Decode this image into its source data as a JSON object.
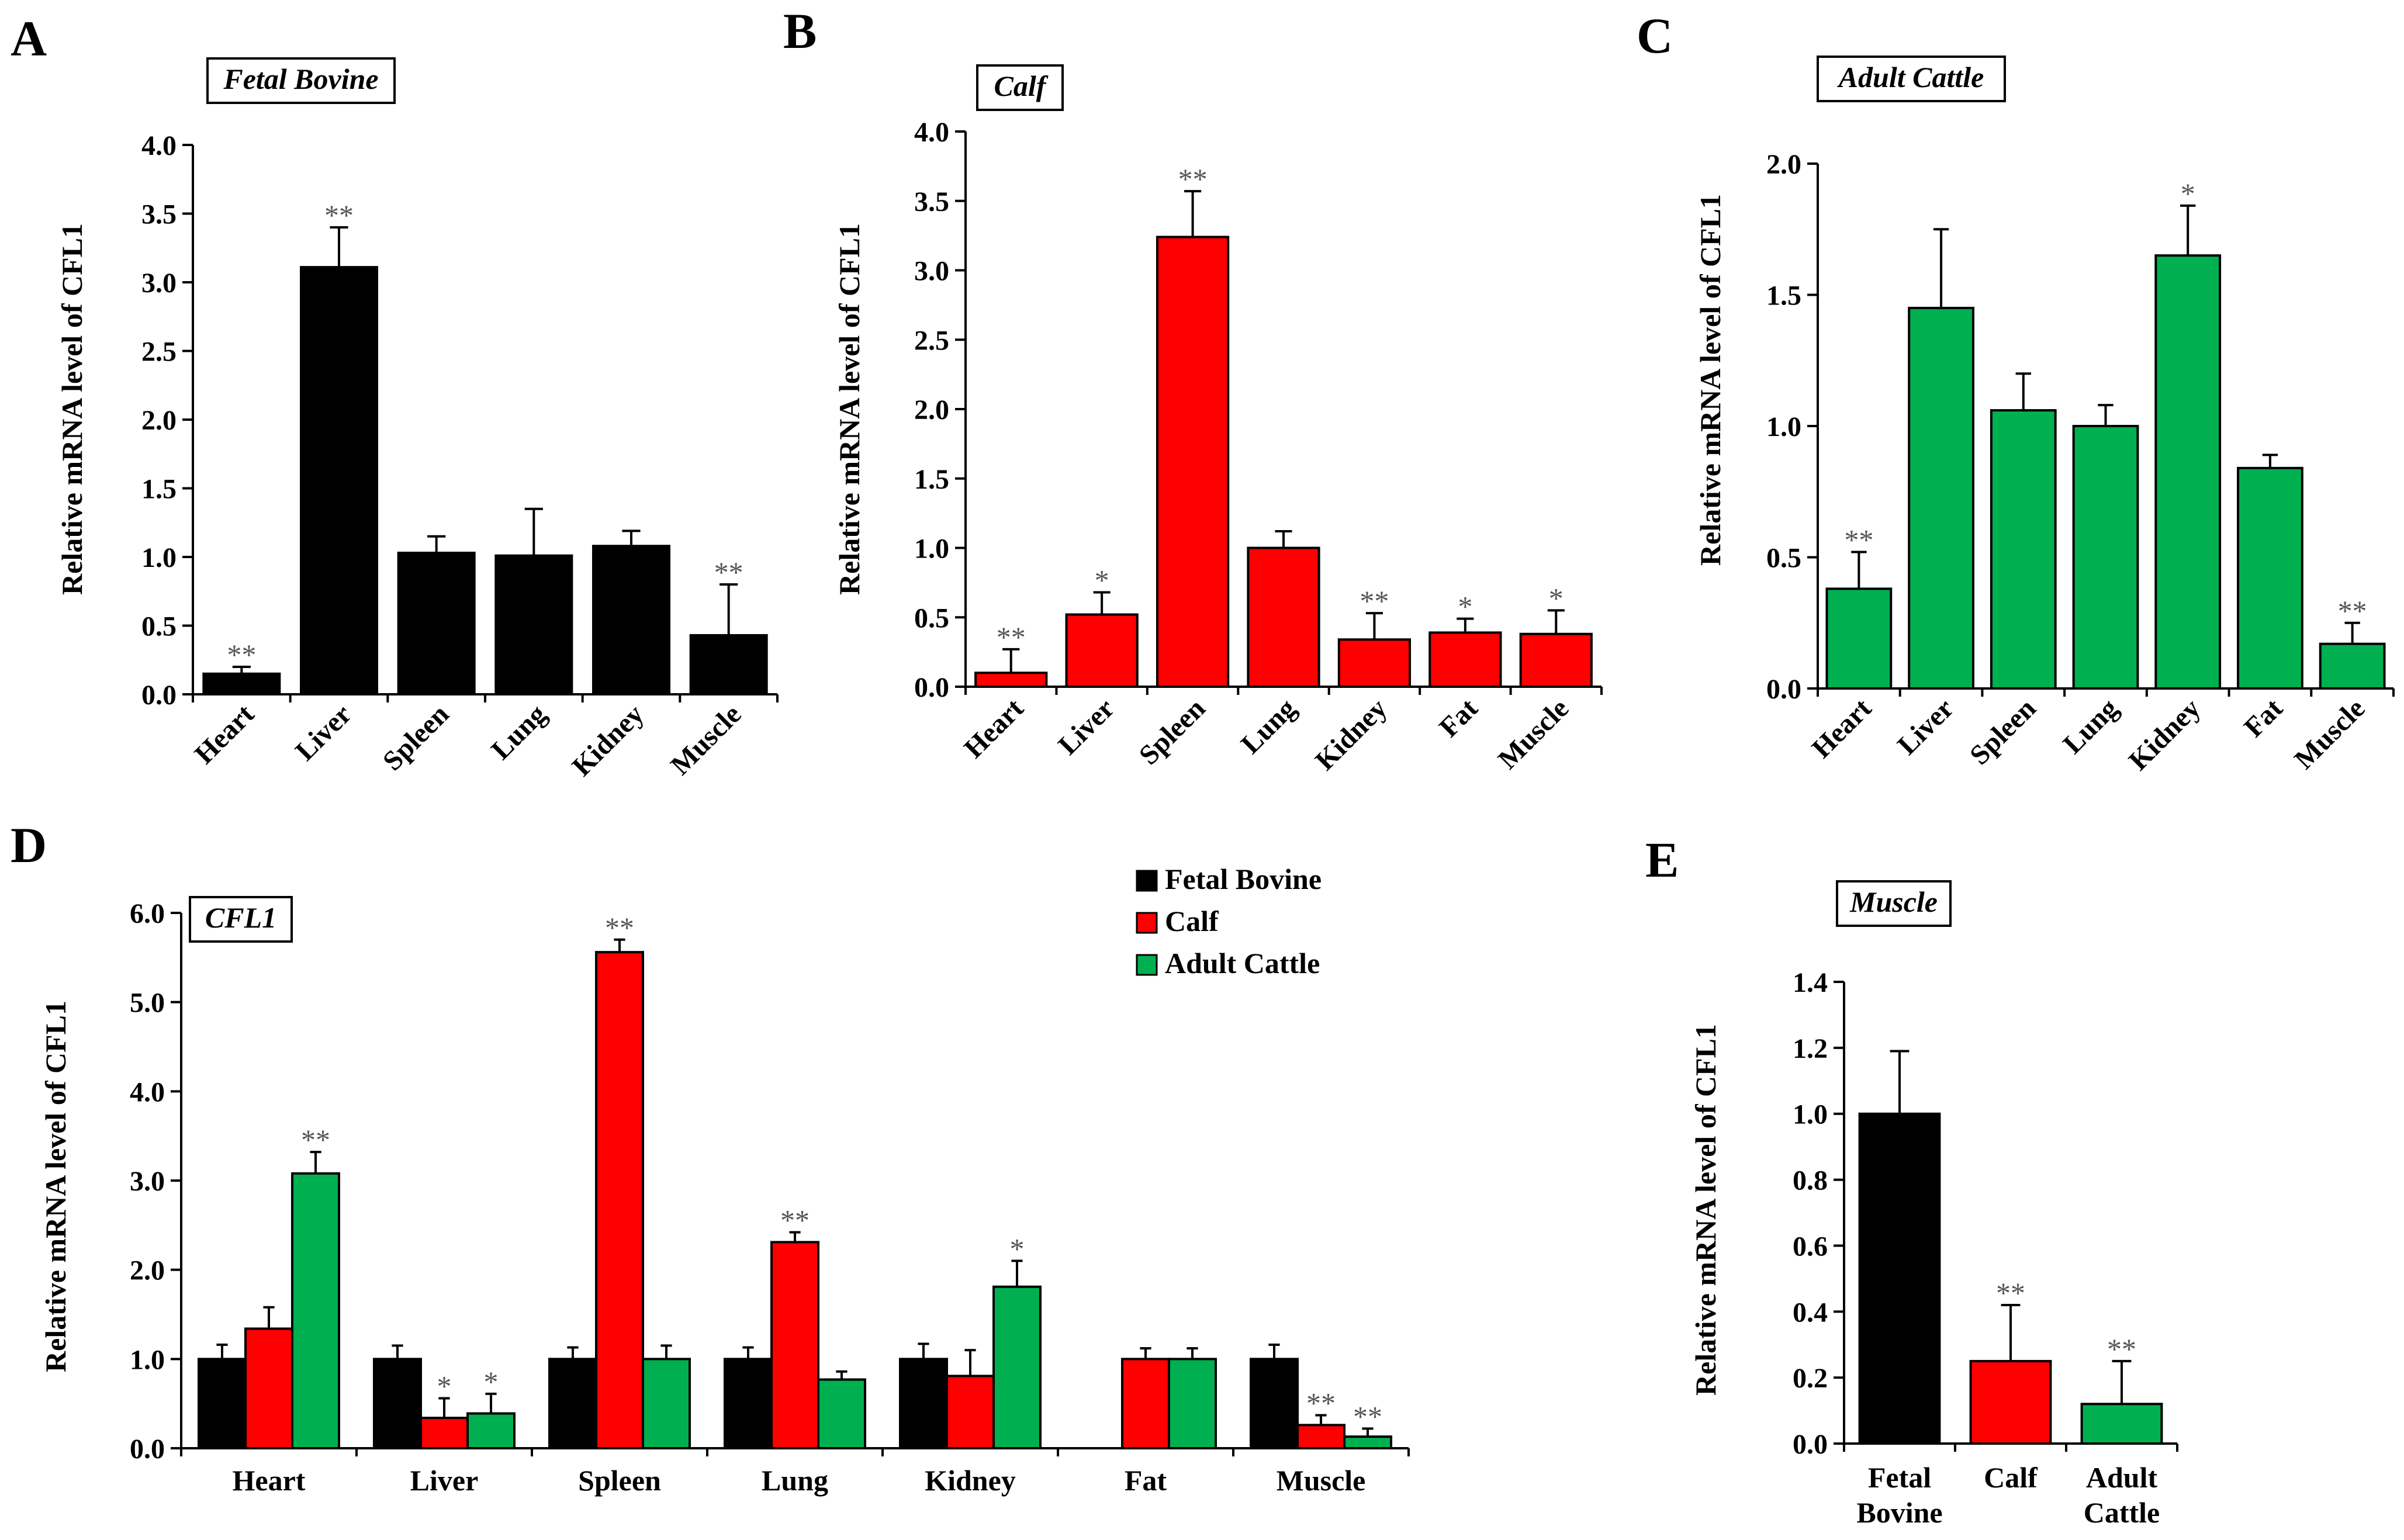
{
  "colors": {
    "fetal": "#000000",
    "calf": "#ff0000",
    "adult": "#00b050",
    "axis": "#000000",
    "star": "#555555"
  },
  "chart_data": [
    {
      "panel": "A",
      "type": "bar",
      "title": "Fetal Bovine",
      "ylabel": "Relative mRNA level of CFL1",
      "xlabel": "",
      "ylim": [
        0,
        4.0
      ],
      "yticks": [
        "0.0",
        "0.5",
        "1.0",
        "1.5",
        "2.0",
        "2.5",
        "3.0",
        "3.5",
        "4.0"
      ],
      "categories": [
        "Heart",
        "Liver",
        "Spleen",
        "Lung",
        "Kidney",
        "Muscle"
      ],
      "series": [
        {
          "name": "Fetal Bovine",
          "color": "#000000",
          "values": [
            0.15,
            3.11,
            1.03,
            1.01,
            1.08,
            0.43
          ],
          "errors": [
            0.05,
            0.29,
            0.12,
            0.34,
            0.11,
            0.37
          ],
          "stars": [
            "**",
            "**",
            "",
            "",
            "",
            "**"
          ]
        }
      ]
    },
    {
      "panel": "B",
      "type": "bar",
      "title": "Calf",
      "ylabel": "Relative mRNA level of CFL1",
      "xlabel": "",
      "ylim": [
        0,
        4.0
      ],
      "yticks": [
        "0.0",
        "0.5",
        "1.0",
        "1.5",
        "2.0",
        "2.5",
        "3.0",
        "3.5",
        "4.0"
      ],
      "categories": [
        "Heart",
        "Liver",
        "Spleen",
        "Lung",
        "Kidney",
        "Fat",
        "Muscle"
      ],
      "series": [
        {
          "name": "Calf",
          "color": "#ff0000",
          "values": [
            0.1,
            0.52,
            3.24,
            1.0,
            0.34,
            0.39,
            0.38
          ],
          "errors": [
            0.17,
            0.16,
            0.33,
            0.12,
            0.19,
            0.1,
            0.17
          ],
          "stars": [
            "**",
            "*",
            "**",
            "",
            "**",
            "*",
            "*"
          ]
        }
      ]
    },
    {
      "panel": "C",
      "type": "bar",
      "title": "Adult Cattle",
      "ylabel": "Relative mRNA level of CFL1",
      "xlabel": "",
      "ylim": [
        0,
        2.0
      ],
      "yticks": [
        "0.0",
        "0.5",
        "1.0",
        "1.5",
        "2.0"
      ],
      "categories": [
        "Heart",
        "Liver",
        "Spleen",
        "Lung",
        "Kidney",
        "Fat",
        "Muscle"
      ],
      "series": [
        {
          "name": "Adult Cattle",
          "color": "#00b050",
          "values": [
            0.38,
            1.45,
            1.06,
            1.0,
            1.65,
            0.84,
            0.17
          ],
          "errors": [
            0.14,
            0.3,
            0.14,
            0.08,
            0.19,
            0.05,
            0.08
          ],
          "stars": [
            "**",
            "",
            "",
            "",
            "*",
            "",
            "**"
          ]
        }
      ]
    },
    {
      "panel": "D",
      "type": "bar",
      "title": "CFL1",
      "ylabel": "Relative mRNA level of CFL1",
      "xlabel": "",
      "ylim": [
        0,
        6.0
      ],
      "yticks": [
        "0.0",
        "1.0",
        "2.0",
        "3.0",
        "4.0",
        "5.0",
        "6.0"
      ],
      "categories": [
        "Heart",
        "Liver",
        "Spleen",
        "Lung",
        "Kidney",
        "Fat",
        "Muscle"
      ],
      "legend": {
        "entries": [
          "Fetal Bovine",
          "Calf",
          "Adult Cattle"
        ],
        "position": "top-right"
      },
      "series": [
        {
          "name": "Fetal Bovine",
          "color": "#000000",
          "values": [
            1.0,
            1.0,
            1.0,
            1.0,
            1.0,
            null,
            1.0
          ],
          "errors": [
            0.16,
            0.15,
            0.13,
            0.13,
            0.17,
            null,
            0.16
          ],
          "stars": [
            "",
            "",
            "",
            "",
            "",
            "",
            ""
          ]
        },
        {
          "name": "Calf",
          "color": "#ff0000",
          "values": [
            1.34,
            0.34,
            5.56,
            2.31,
            0.81,
            1.0,
            0.26
          ],
          "errors": [
            0.24,
            0.22,
            0.14,
            0.11,
            0.29,
            0.12,
            0.11
          ],
          "stars": [
            "",
            "*",
            "**",
            "**",
            "",
            "",
            "**"
          ]
        },
        {
          "name": "Adult Cattle",
          "color": "#00b050",
          "values": [
            3.08,
            0.39,
            1.0,
            0.77,
            1.81,
            1.0,
            0.13
          ],
          "errors": [
            0.24,
            0.22,
            0.15,
            0.09,
            0.29,
            0.12,
            0.09
          ],
          "stars": [
            "**",
            "*",
            "",
            "",
            "*",
            "",
            "**"
          ]
        }
      ]
    },
    {
      "panel": "E",
      "type": "bar",
      "title": "Muscle",
      "ylabel": "Relative mRNA level of CFL1",
      "xlabel": "",
      "ylim": [
        0,
        1.4
      ],
      "yticks": [
        "0.0",
        "0.2",
        "0.4",
        "0.6",
        "0.8",
        "1.0",
        "1.2",
        "1.4"
      ],
      "categories": [
        [
          "Fetal",
          "Bovine"
        ],
        [
          "Calf"
        ],
        [
          "Adult",
          "Cattle"
        ]
      ],
      "colors": [
        "#000000",
        "#ff0000",
        "#00b050"
      ],
      "values": [
        1.0,
        0.25,
        0.12
      ],
      "errors": [
        0.19,
        0.17,
        0.13
      ],
      "stars": [
        "",
        "**",
        "**"
      ]
    }
  ]
}
